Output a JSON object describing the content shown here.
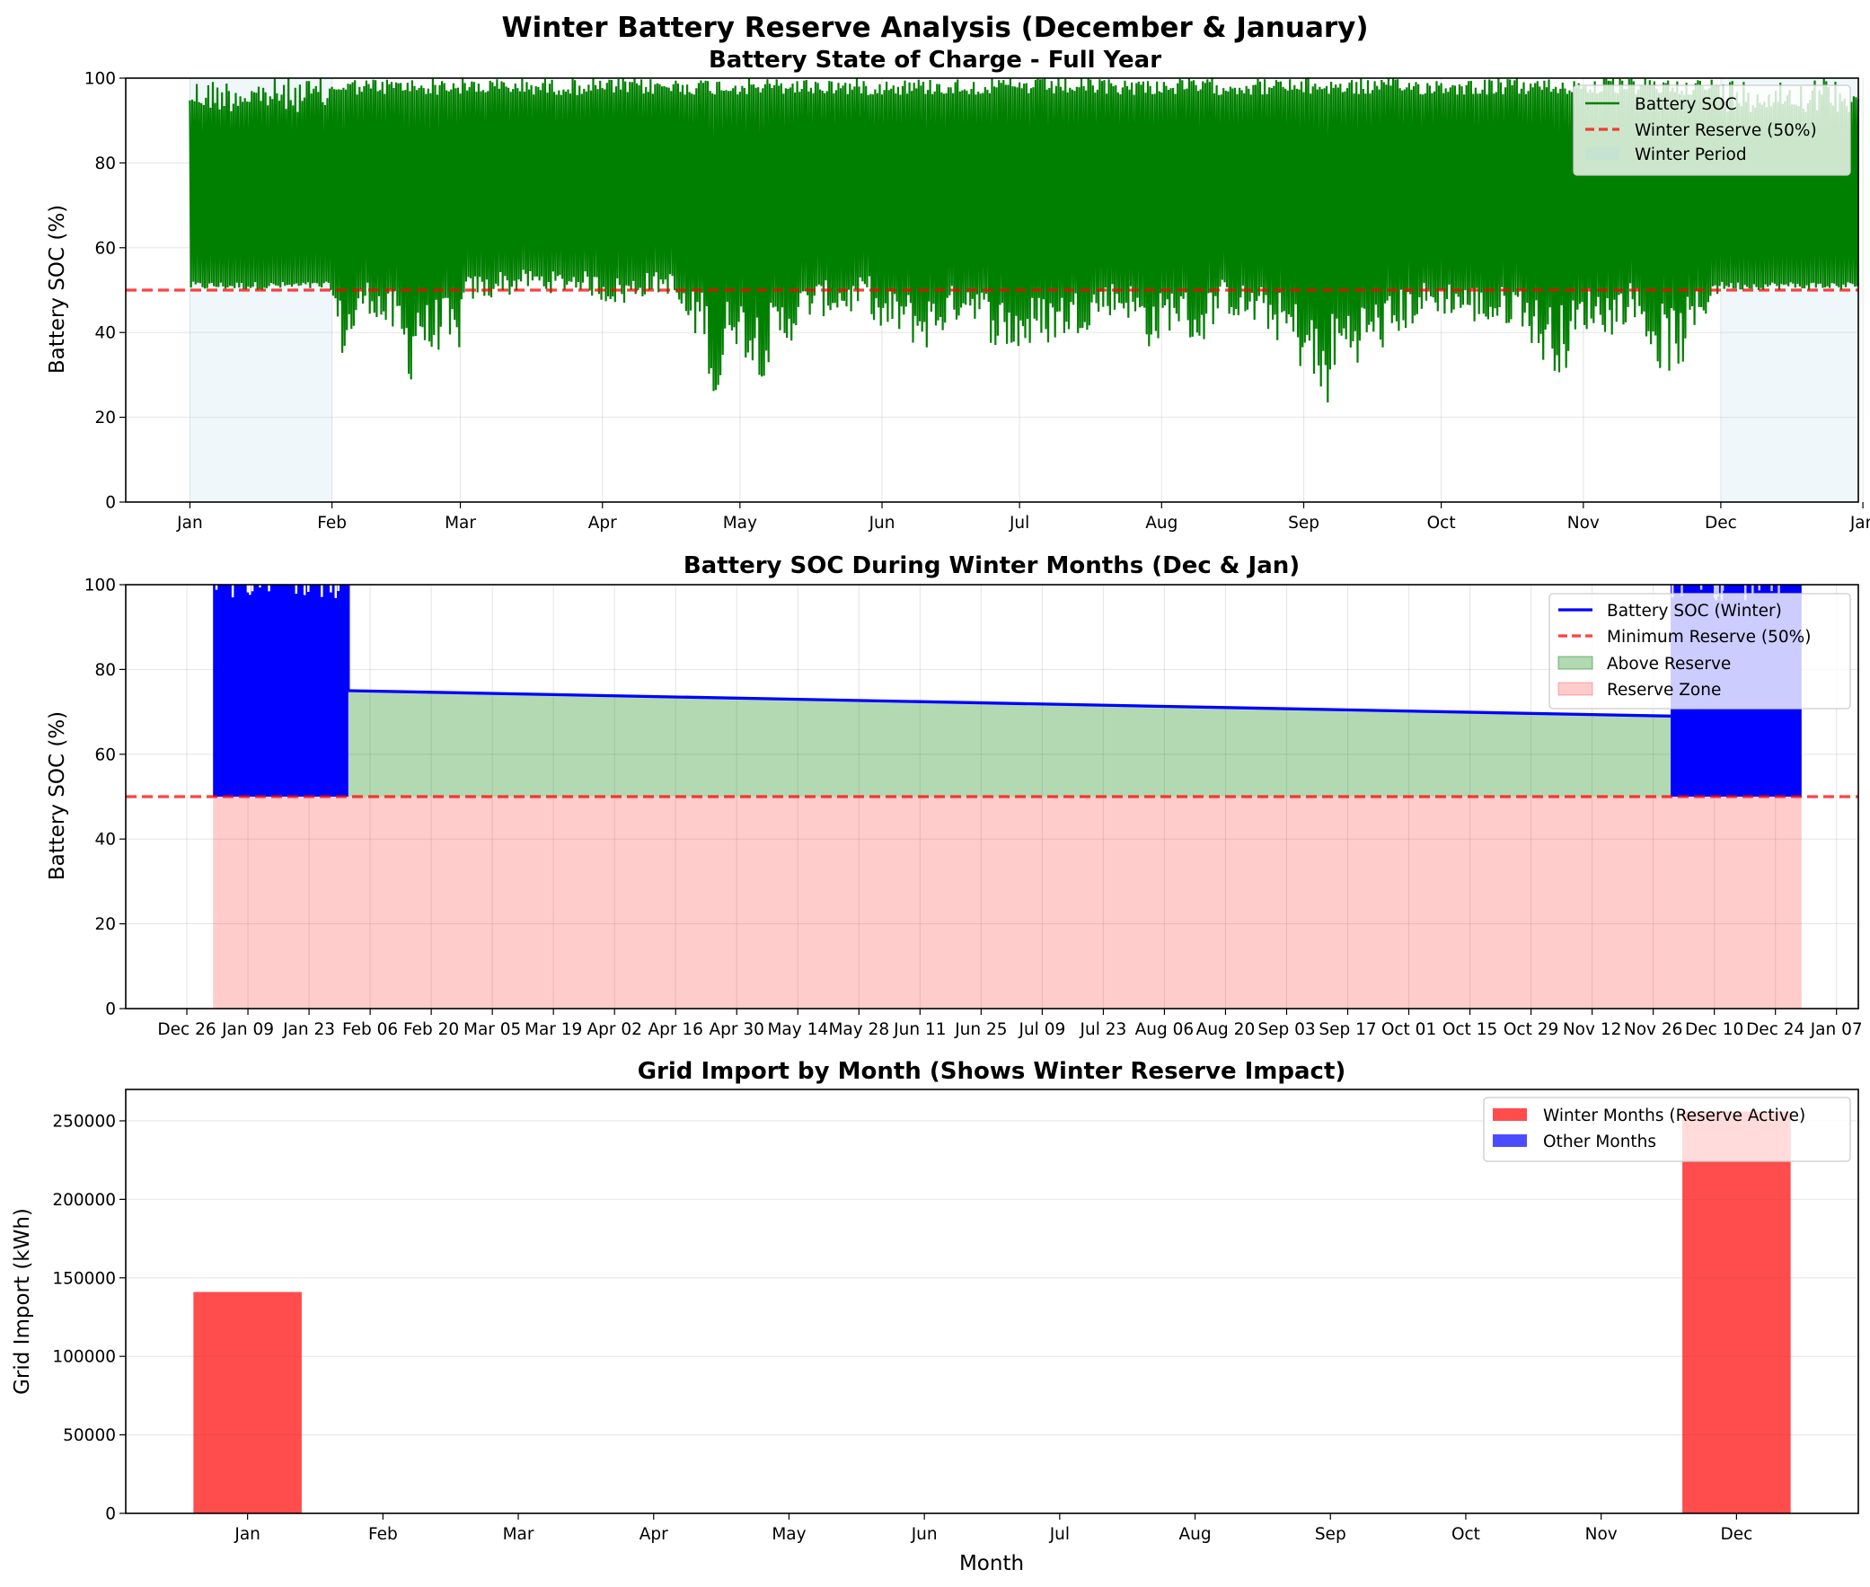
{
  "suptitle": "Winter Battery Reserve Analysis (December & January)",
  "chart_data": [
    {
      "type": "line",
      "title": "Battery State of Charge - Full Year",
      "ylabel": "Battery SOC (%)",
      "xlabel": "",
      "ylim": [
        0,
        100
      ],
      "yticks": [
        0,
        20,
        40,
        60,
        80,
        100
      ],
      "x_ticks": [
        "Jan",
        "Feb",
        "Mar",
        "Apr",
        "May",
        "Jun",
        "Jul",
        "Aug",
        "Sep",
        "Oct",
        "Nov",
        "Dec",
        "Jan"
      ],
      "x_range_days": [
        -14,
        364
      ],
      "grid": true,
      "legend_position": "top-right",
      "legend": [
        "Battery SOC",
        "Winter Reserve (50%)",
        "Winter Period"
      ],
      "reserve_level": 50,
      "winter_periods_days": [
        [
          0,
          31
        ],
        [
          334,
          364
        ]
      ],
      "soc_daily_min": {
        "days": [
          0,
          5,
          10,
          15,
          20,
          25,
          30,
          31,
          33,
          35,
          38,
          40,
          42,
          45,
          47,
          48,
          50,
          52,
          55,
          58,
          60,
          63,
          65,
          68,
          70,
          72,
          75,
          80,
          85,
          90,
          95,
          100,
          105,
          108,
          110,
          112,
          115,
          118,
          120,
          125,
          130,
          135,
          140,
          145,
          148,
          150,
          155,
          160,
          165,
          170,
          175,
          180,
          185,
          190,
          195,
          200,
          205,
          210,
          215,
          220,
          225,
          230,
          235,
          240,
          243,
          245,
          247,
          250,
          255,
          260,
          265,
          270,
          275,
          280,
          285,
          290,
          295,
          300,
          305,
          310,
          315,
          320,
          325,
          330,
          334,
          340,
          345,
          350,
          355,
          360,
          364
        ],
        "values": [
          50,
          50,
          50,
          50,
          50,
          50,
          50,
          46,
          33,
          35,
          45,
          44,
          40,
          38,
          30,
          27,
          38,
          31,
          37,
          29,
          46,
          48,
          47,
          50,
          48,
          50,
          50,
          49,
          50,
          47,
          46,
          49,
          49,
          40,
          38,
          41,
          15,
          40,
          35,
          29,
          36,
          43,
          44,
          44,
          48,
          38,
          39,
          35,
          40,
          45,
          37,
          34,
          36,
          38,
          40,
          44,
          43,
          35,
          42,
          35,
          45,
          42,
          40,
          35,
          30,
          27,
          16,
          30,
          33,
          35,
          40,
          44,
          44,
          42,
          40,
          43,
          32,
          30,
          41,
          39,
          44,
          31,
          30,
          42,
          50,
          50,
          50,
          49,
          50,
          50,
          50
        ]
      },
      "soc_daily_max": 100,
      "annotations": []
    },
    {
      "type": "line",
      "title": "Battery SOC During Winter Months (Dec & Jan)",
      "ylabel": "Battery SOC (%)",
      "xlabel": "",
      "ylim": [
        0,
        100
      ],
      "yticks": [
        0,
        20,
        40,
        60,
        80,
        100
      ],
      "x_ticks": [
        "Dec 26",
        "Jan 09",
        "Jan 23",
        "Feb 06",
        "Feb 20",
        "Mar 05",
        "Mar 19",
        "Apr 02",
        "Apr 16",
        "Apr 30",
        "May 14",
        "May 28",
        "Jun 11",
        "Jun 25",
        "Jul 09",
        "Jul 23",
        "Aug 06",
        "Aug 20",
        "Sep 03",
        "Sep 17",
        "Oct 01",
        "Oct 15",
        "Oct 29",
        "Nov 12",
        "Nov 26",
        "Dec 10",
        "Dec 24",
        "Jan 07"
      ],
      "x_tick_days": [
        -6,
        8,
        22,
        36,
        50,
        64,
        78,
        92,
        106,
        120,
        134,
        148,
        162,
        176,
        190,
        204,
        218,
        232,
        246,
        260,
        274,
        288,
        302,
        316,
        330,
        344,
        358,
        372
      ],
      "x_range_days": [
        -20,
        377
      ],
      "grid": true,
      "legend_position": "top-right",
      "legend": [
        "Battery SOC (Winter)",
        "Minimum Reserve (50%)",
        "Above Reserve",
        "Reserve Zone"
      ],
      "reserve_level": 50,
      "winter_data_days": [
        [
          0,
          31
        ],
        [
          334,
          364
        ]
      ],
      "interpolated_line": {
        "x": [
          31,
          334
        ],
        "y": [
          75,
          69
        ]
      },
      "soc_range_in_winter": [
        50,
        100
      ]
    },
    {
      "type": "bar",
      "title": "Grid Import by Month (Shows Winter Reserve Impact)",
      "xlabel": "Month",
      "ylabel": "Grid Import (kWh)",
      "ylim": [
        0,
        270000
      ],
      "yticks": [
        0,
        50000,
        100000,
        150000,
        200000,
        250000
      ],
      "categories": [
        "Jan",
        "Feb",
        "Mar",
        "Apr",
        "May",
        "Jun",
        "Jul",
        "Aug",
        "Sep",
        "Oct",
        "Nov",
        "Dec"
      ],
      "values": [
        141000,
        0,
        0,
        0,
        0,
        0,
        0,
        0,
        0,
        0,
        0,
        256000
      ],
      "winter": [
        true,
        false,
        false,
        false,
        false,
        false,
        false,
        false,
        false,
        false,
        false,
        true
      ],
      "grid": true,
      "legend_position": "top-right",
      "legend": [
        "Winter Months (Reserve Active)",
        "Other Months"
      ]
    }
  ],
  "colors": {
    "soc_full": "#008000",
    "soc_winter": "#0000ff",
    "reserve_line": "#ff0000",
    "winter_period": "#add8e6",
    "above_reserve": "#008000",
    "reserve_zone": "#ff0000",
    "bar_winter": "#ff0000",
    "bar_other": "#0000ff"
  }
}
